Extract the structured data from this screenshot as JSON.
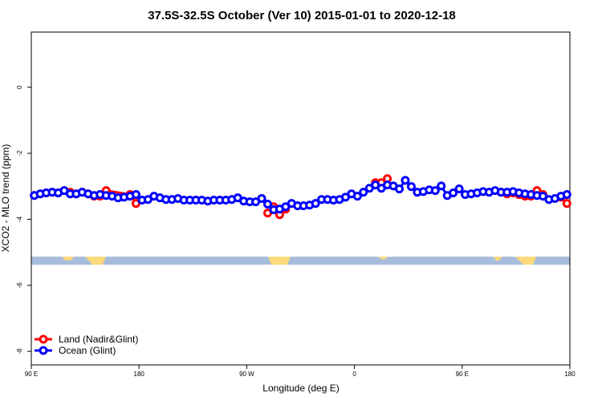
{
  "chart_data": {
    "type": "line",
    "title": "37.5S-32.5S October (Ver 10)   2015-01-01 to 2020-12-18",
    "x_label": "Longitude (deg E)",
    "y_label": "XCO2 - MLO trend (ppm)",
    "xlim": [
      90,
      540
    ],
    "ylim": [
      -8.41,
      1.67
    ],
    "xticks": [
      {
        "value": 90,
        "label": "90 E"
      },
      {
        "value": 180,
        "label": "180"
      },
      {
        "value": 270,
        "label": "90 W"
      },
      {
        "value": 360,
        "label": "0"
      },
      {
        "value": 450,
        "label": "90 E"
      },
      {
        "value": 540,
        "label": "180"
      }
    ],
    "yticks": [
      0,
      -2,
      -4,
      -6,
      -8
    ],
    "legend": "bottom-left",
    "series": [
      {
        "name": "Land (Nadir&Glint)",
        "color": "#ff0000",
        "x": [
          92.5,
          97.5,
          102.5,
          107.5,
          112.5,
          117.5,
          122.5,
          127.5,
          132.5,
          137.5,
          142.5,
          147.5,
          152.5,
          172.5,
          177.5,
          182.5,
          287.5,
          292.5,
          297.5,
          302.5,
          307.5,
          377.5,
          382.5,
          387.5,
          392.5,
          482.5,
          487.5,
          492.5,
          497.5,
          502.5,
          507.5,
          512.5,
          517.5,
          522.5,
          532.5,
          537.5
        ],
        "values": [
          -3.28,
          -3.23,
          -3.2,
          -3.18,
          -3.2,
          -3.13,
          -3.18,
          -3.23,
          -3.18,
          -3.23,
          -3.3,
          -3.3,
          -3.13,
          -3.25,
          -3.52,
          null,
          -3.81,
          -3.62,
          -3.86,
          -3.69,
          null,
          -2.89,
          -2.89,
          -2.77,
          null,
          -3.18,
          -3.23,
          -3.2,
          -3.25,
          -3.3,
          -3.3,
          -3.13,
          -3.25,
          null,
          -3.33,
          -3.52
        ]
      },
      {
        "name": "Ocean (Glint)",
        "color": "#0000ff",
        "x": [
          92.5,
          97.5,
          102.5,
          107.5,
          112.5,
          117.5,
          122.5,
          127.5,
          132.5,
          137.5,
          142.5,
          147.5,
          152.5,
          157.5,
          162.5,
          167.5,
          172.5,
          177.5,
          182.5,
          187.5,
          192.5,
          197.5,
          202.5,
          207.5,
          212.5,
          217.5,
          222.5,
          227.5,
          232.5,
          237.5,
          242.5,
          247.5,
          252.5,
          257.5,
          262.5,
          267.5,
          272.5,
          277.5,
          282.5,
          287.5,
          292.5,
          297.5,
          302.5,
          307.5,
          312.5,
          317.5,
          322.5,
          327.5,
          332.5,
          337.5,
          342.5,
          347.5,
          352.5,
          357.5,
          362.5,
          367.5,
          372.5,
          377.5,
          382.5,
          387.5,
          392.5,
          397.5,
          402.5,
          407.5,
          412.5,
          417.5,
          422.5,
          427.5,
          432.5,
          437.5,
          442.5,
          447.5,
          452.5,
          457.5,
          462.5,
          467.5,
          472.5,
          477.5,
          482.5,
          487.5,
          492.5,
          497.5,
          502.5,
          507.5,
          512.5,
          517.5,
          522.5,
          527.5,
          532.5,
          537.5
        ],
        "values": [
          -3.28,
          -3.23,
          -3.2,
          -3.18,
          -3.2,
          -3.13,
          -3.23,
          -3.23,
          -3.18,
          -3.23,
          -3.28,
          -3.25,
          -3.28,
          -3.3,
          -3.35,
          -3.33,
          -3.3,
          -3.25,
          -3.42,
          -3.4,
          -3.3,
          -3.35,
          -3.4,
          -3.4,
          -3.37,
          -3.42,
          -3.42,
          -3.42,
          -3.42,
          -3.45,
          -3.42,
          -3.42,
          -3.42,
          -3.4,
          -3.35,
          -3.45,
          -3.47,
          -3.47,
          -3.37,
          -3.54,
          -3.71,
          -3.69,
          -3.62,
          -3.52,
          -3.59,
          -3.59,
          -3.57,
          -3.52,
          -3.4,
          -3.4,
          -3.42,
          -3.4,
          -3.33,
          -3.23,
          -3.3,
          -3.18,
          -3.06,
          -2.96,
          -3.06,
          -2.96,
          -2.99,
          -3.08,
          -2.82,
          -3.01,
          -3.18,
          -3.16,
          -3.11,
          -3.13,
          -2.99,
          -3.28,
          -3.2,
          -3.08,
          -3.25,
          -3.23,
          -3.2,
          -3.16,
          -3.18,
          -3.13,
          -3.18,
          -3.18,
          -3.16,
          -3.2,
          -3.23,
          -3.25,
          -3.28,
          -3.3,
          -3.4,
          -3.37,
          -3.3,
          -3.25
        ]
      }
    ]
  }
}
